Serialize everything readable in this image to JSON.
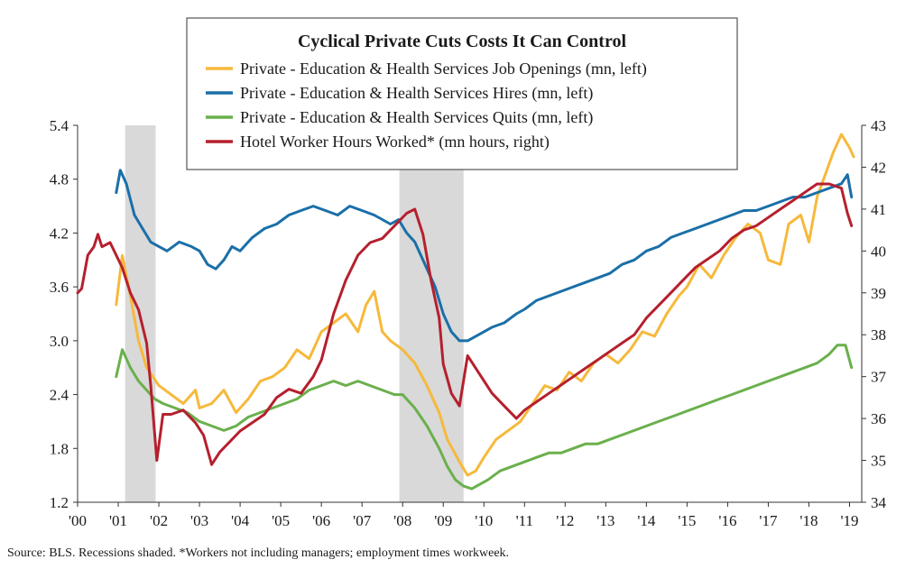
{
  "chart_data": {
    "type": "line",
    "title": "Cyclical Private Cuts Costs It Can Control",
    "source": "Source: BLS. Recessions shaded. *Workers not including managers; employment times workweek.",
    "x_tick_labels": [
      "'00",
      "'01",
      "'02",
      "'03",
      "'04",
      "'05",
      "'06",
      "'07",
      "'08",
      "'09",
      "'10",
      "'11",
      "'12",
      "'13",
      "'14",
      "'15",
      "'16",
      "'17",
      "'18",
      "'19"
    ],
    "x_range": [
      2000.0,
      2019.3
    ],
    "y_left": {
      "range": [
        1.2,
        5.4
      ],
      "ticks": [
        "1.2",
        "1.8",
        "2.4",
        "3.0",
        "3.6",
        "4.2",
        "4.8",
        "5.4"
      ],
      "values": [
        1.2,
        1.8,
        2.4,
        3.0,
        3.6,
        4.2,
        4.8,
        5.4
      ]
    },
    "y_right": {
      "range": [
        34,
        43
      ],
      "ticks": [
        "34",
        "35",
        "36",
        "37",
        "38",
        "39",
        "40",
        "41",
        "42",
        "43"
      ],
      "values": [
        34,
        35,
        36,
        37,
        38,
        39,
        40,
        41,
        42,
        43
      ]
    },
    "recessions": [
      [
        2001.17,
        2001.92
      ],
      [
        2007.92,
        2009.5
      ]
    ],
    "series": [
      {
        "name": "Private - Education & Health Services Job Openings (mn, left)",
        "axis": "left",
        "color": "#f6b93b",
        "points": [
          [
            2000.95,
            3.4
          ],
          [
            2001.1,
            3.95
          ],
          [
            2001.3,
            3.5
          ],
          [
            2001.5,
            3.0
          ],
          [
            2001.7,
            2.7
          ],
          [
            2002.0,
            2.5
          ],
          [
            2002.3,
            2.4
          ],
          [
            2002.6,
            2.3
          ],
          [
            2002.9,
            2.45
          ],
          [
            2003.0,
            2.25
          ],
          [
            2003.3,
            2.3
          ],
          [
            2003.6,
            2.45
          ],
          [
            2003.9,
            2.2
          ],
          [
            2004.2,
            2.35
          ],
          [
            2004.5,
            2.55
          ],
          [
            2004.8,
            2.6
          ],
          [
            2005.1,
            2.7
          ],
          [
            2005.4,
            2.9
          ],
          [
            2005.7,
            2.8
          ],
          [
            2006.0,
            3.1
          ],
          [
            2006.3,
            3.2
          ],
          [
            2006.6,
            3.3
          ],
          [
            2006.9,
            3.1
          ],
          [
            2007.1,
            3.4
          ],
          [
            2007.3,
            3.55
          ],
          [
            2007.5,
            3.1
          ],
          [
            2007.7,
            3.0
          ],
          [
            2008.0,
            2.9
          ],
          [
            2008.3,
            2.75
          ],
          [
            2008.6,
            2.5
          ],
          [
            2008.9,
            2.2
          ],
          [
            2009.1,
            1.9
          ],
          [
            2009.4,
            1.65
          ],
          [
            2009.6,
            1.5
          ],
          [
            2009.8,
            1.55
          ],
          [
            2010.0,
            1.7
          ],
          [
            2010.3,
            1.9
          ],
          [
            2010.6,
            2.0
          ],
          [
            2010.9,
            2.1
          ],
          [
            2011.2,
            2.3
          ],
          [
            2011.5,
            2.5
          ],
          [
            2011.8,
            2.45
          ],
          [
            2012.1,
            2.65
          ],
          [
            2012.4,
            2.55
          ],
          [
            2012.7,
            2.75
          ],
          [
            2013.0,
            2.85
          ],
          [
            2013.3,
            2.75
          ],
          [
            2013.6,
            2.9
          ],
          [
            2013.9,
            3.1
          ],
          [
            2014.2,
            3.05
          ],
          [
            2014.5,
            3.3
          ],
          [
            2014.8,
            3.5
          ],
          [
            2015.0,
            3.6
          ],
          [
            2015.3,
            3.85
          ],
          [
            2015.6,
            3.7
          ],
          [
            2015.9,
            3.95
          ],
          [
            2016.2,
            4.15
          ],
          [
            2016.5,
            4.3
          ],
          [
            2016.8,
            4.2
          ],
          [
            2017.0,
            3.9
          ],
          [
            2017.3,
            3.85
          ],
          [
            2017.5,
            4.3
          ],
          [
            2017.8,
            4.4
          ],
          [
            2018.0,
            4.1
          ],
          [
            2018.2,
            4.6
          ],
          [
            2018.4,
            4.85
          ],
          [
            2018.6,
            5.1
          ],
          [
            2018.8,
            5.3
          ],
          [
            2019.0,
            5.15
          ],
          [
            2019.1,
            5.05
          ]
        ]
      },
      {
        "name": "Private - Education & Health Services Hires (mn, left)",
        "axis": "left",
        "color": "#1a6fa8",
        "points": [
          [
            2000.95,
            4.65
          ],
          [
            2001.05,
            4.9
          ],
          [
            2001.2,
            4.75
          ],
          [
            2001.4,
            4.4
          ],
          [
            2001.6,
            4.25
          ],
          [
            2001.8,
            4.1
          ],
          [
            2002.0,
            4.05
          ],
          [
            2002.2,
            4.0
          ],
          [
            2002.5,
            4.1
          ],
          [
            2002.8,
            4.05
          ],
          [
            2003.0,
            4.0
          ],
          [
            2003.2,
            3.85
          ],
          [
            2003.4,
            3.8
          ],
          [
            2003.6,
            3.9
          ],
          [
            2003.8,
            4.05
          ],
          [
            2004.0,
            4.0
          ],
          [
            2004.3,
            4.15
          ],
          [
            2004.6,
            4.25
          ],
          [
            2004.9,
            4.3
          ],
          [
            2005.2,
            4.4
          ],
          [
            2005.5,
            4.45
          ],
          [
            2005.8,
            4.5
          ],
          [
            2006.1,
            4.45
          ],
          [
            2006.4,
            4.4
          ],
          [
            2006.7,
            4.5
          ],
          [
            2007.0,
            4.45
          ],
          [
            2007.3,
            4.4
          ],
          [
            2007.5,
            4.35
          ],
          [
            2007.7,
            4.3
          ],
          [
            2007.9,
            4.35
          ],
          [
            2008.1,
            4.2
          ],
          [
            2008.3,
            4.1
          ],
          [
            2008.5,
            3.9
          ],
          [
            2008.8,
            3.6
          ],
          [
            2009.0,
            3.3
          ],
          [
            2009.2,
            3.1
          ],
          [
            2009.4,
            3.0
          ],
          [
            2009.6,
            3.0
          ],
          [
            2009.8,
            3.05
          ],
          [
            2010.0,
            3.1
          ],
          [
            2010.2,
            3.15
          ],
          [
            2010.5,
            3.2
          ],
          [
            2010.8,
            3.3
          ],
          [
            2011.0,
            3.35
          ],
          [
            2011.3,
            3.45
          ],
          [
            2011.6,
            3.5
          ],
          [
            2011.9,
            3.55
          ],
          [
            2012.2,
            3.6
          ],
          [
            2012.5,
            3.65
          ],
          [
            2012.8,
            3.7
          ],
          [
            2013.1,
            3.75
          ],
          [
            2013.4,
            3.85
          ],
          [
            2013.7,
            3.9
          ],
          [
            2014.0,
            4.0
          ],
          [
            2014.3,
            4.05
          ],
          [
            2014.6,
            4.15
          ],
          [
            2014.9,
            4.2
          ],
          [
            2015.2,
            4.25
          ],
          [
            2015.5,
            4.3
          ],
          [
            2015.8,
            4.35
          ],
          [
            2016.1,
            4.4
          ],
          [
            2016.4,
            4.45
          ],
          [
            2016.7,
            4.45
          ],
          [
            2017.0,
            4.5
          ],
          [
            2017.3,
            4.55
          ],
          [
            2017.6,
            4.6
          ],
          [
            2017.9,
            4.6
          ],
          [
            2018.2,
            4.65
          ],
          [
            2018.5,
            4.7
          ],
          [
            2018.8,
            4.75
          ],
          [
            2018.95,
            4.85
          ],
          [
            2019.05,
            4.6
          ]
        ]
      },
      {
        "name": "Private - Education & Health Services Quits (mn, left)",
        "axis": "left",
        "color": "#6ab04c",
        "points": [
          [
            2000.95,
            2.6
          ],
          [
            2001.1,
            2.9
          ],
          [
            2001.3,
            2.7
          ],
          [
            2001.5,
            2.55
          ],
          [
            2001.7,
            2.45
          ],
          [
            2001.9,
            2.35
          ],
          [
            2002.1,
            2.3
          ],
          [
            2002.4,
            2.25
          ],
          [
            2002.7,
            2.2
          ],
          [
            2003.0,
            2.1
          ],
          [
            2003.3,
            2.05
          ],
          [
            2003.6,
            2.0
          ],
          [
            2003.9,
            2.05
          ],
          [
            2004.2,
            2.15
          ],
          [
            2004.5,
            2.2
          ],
          [
            2004.8,
            2.25
          ],
          [
            2005.1,
            2.3
          ],
          [
            2005.4,
            2.35
          ],
          [
            2005.7,
            2.45
          ],
          [
            2006.0,
            2.5
          ],
          [
            2006.3,
            2.55
          ],
          [
            2006.6,
            2.5
          ],
          [
            2006.9,
            2.55
          ],
          [
            2007.2,
            2.5
          ],
          [
            2007.5,
            2.45
          ],
          [
            2007.8,
            2.4
          ],
          [
            2008.0,
            2.4
          ],
          [
            2008.3,
            2.25
          ],
          [
            2008.6,
            2.05
          ],
          [
            2008.9,
            1.8
          ],
          [
            2009.1,
            1.6
          ],
          [
            2009.3,
            1.45
          ],
          [
            2009.5,
            1.38
          ],
          [
            2009.7,
            1.35
          ],
          [
            2009.9,
            1.4
          ],
          [
            2010.1,
            1.45
          ],
          [
            2010.4,
            1.55
          ],
          [
            2010.7,
            1.6
          ],
          [
            2011.0,
            1.65
          ],
          [
            2011.3,
            1.7
          ],
          [
            2011.6,
            1.75
          ],
          [
            2011.9,
            1.75
          ],
          [
            2012.2,
            1.8
          ],
          [
            2012.5,
            1.85
          ],
          [
            2012.8,
            1.85
          ],
          [
            2013.1,
            1.9
          ],
          [
            2013.4,
            1.95
          ],
          [
            2013.7,
            2.0
          ],
          [
            2014.0,
            2.05
          ],
          [
            2014.3,
            2.1
          ],
          [
            2014.6,
            2.15
          ],
          [
            2014.9,
            2.2
          ],
          [
            2015.2,
            2.25
          ],
          [
            2015.5,
            2.3
          ],
          [
            2015.8,
            2.35
          ],
          [
            2016.1,
            2.4
          ],
          [
            2016.4,
            2.45
          ],
          [
            2016.7,
            2.5
          ],
          [
            2017.0,
            2.55
          ],
          [
            2017.3,
            2.6
          ],
          [
            2017.6,
            2.65
          ],
          [
            2017.9,
            2.7
          ],
          [
            2018.2,
            2.75
          ],
          [
            2018.5,
            2.85
          ],
          [
            2018.7,
            2.95
          ],
          [
            2018.9,
            2.95
          ],
          [
            2019.05,
            2.7
          ]
        ]
      },
      {
        "name": "Hotel Worker Hours Worked* (mn hours, right)",
        "axis": "right",
        "color": "#b5202e",
        "points": [
          [
            2000.0,
            39.0
          ],
          [
            2000.1,
            39.1
          ],
          [
            2000.25,
            39.9
          ],
          [
            2000.4,
            40.1
          ],
          [
            2000.5,
            40.4
          ],
          [
            2000.6,
            40.1
          ],
          [
            2000.8,
            40.2
          ],
          [
            2000.95,
            39.9
          ],
          [
            2001.1,
            39.6
          ],
          [
            2001.3,
            39.0
          ],
          [
            2001.5,
            38.6
          ],
          [
            2001.7,
            37.8
          ],
          [
            2001.8,
            36.8
          ],
          [
            2001.95,
            35.0
          ],
          [
            2002.1,
            36.1
          ],
          [
            2002.3,
            36.1
          ],
          [
            2002.6,
            36.2
          ],
          [
            2002.9,
            35.9
          ],
          [
            2003.1,
            35.6
          ],
          [
            2003.3,
            34.9
          ],
          [
            2003.5,
            35.2
          ],
          [
            2003.7,
            35.4
          ],
          [
            2004.0,
            35.7
          ],
          [
            2004.3,
            35.9
          ],
          [
            2004.6,
            36.1
          ],
          [
            2004.9,
            36.5
          ],
          [
            2005.2,
            36.7
          ],
          [
            2005.5,
            36.6
          ],
          [
            2005.8,
            37.0
          ],
          [
            2006.0,
            37.4
          ],
          [
            2006.3,
            38.5
          ],
          [
            2006.6,
            39.3
          ],
          [
            2006.9,
            39.9
          ],
          [
            2007.2,
            40.2
          ],
          [
            2007.5,
            40.3
          ],
          [
            2007.7,
            40.5
          ],
          [
            2007.9,
            40.7
          ],
          [
            2008.1,
            40.9
          ],
          [
            2008.3,
            41.0
          ],
          [
            2008.5,
            40.4
          ],
          [
            2008.7,
            39.3
          ],
          [
            2008.9,
            38.4
          ],
          [
            2009.0,
            37.3
          ],
          [
            2009.2,
            36.6
          ],
          [
            2009.4,
            36.3
          ],
          [
            2009.6,
            37.5
          ],
          [
            2009.8,
            37.2
          ],
          [
            2010.0,
            36.9
          ],
          [
            2010.2,
            36.6
          ],
          [
            2010.5,
            36.3
          ],
          [
            2010.8,
            36.0
          ],
          [
            2011.0,
            36.2
          ],
          [
            2011.3,
            36.4
          ],
          [
            2011.6,
            36.6
          ],
          [
            2011.9,
            36.8
          ],
          [
            2012.2,
            37.0
          ],
          [
            2012.5,
            37.2
          ],
          [
            2012.8,
            37.4
          ],
          [
            2013.1,
            37.6
          ],
          [
            2013.4,
            37.8
          ],
          [
            2013.7,
            38.0
          ],
          [
            2014.0,
            38.4
          ],
          [
            2014.3,
            38.7
          ],
          [
            2014.6,
            39.0
          ],
          [
            2014.9,
            39.3
          ],
          [
            2015.2,
            39.6
          ],
          [
            2015.5,
            39.8
          ],
          [
            2015.8,
            40.0
          ],
          [
            2016.1,
            40.3
          ],
          [
            2016.4,
            40.5
          ],
          [
            2016.7,
            40.6
          ],
          [
            2017.0,
            40.8
          ],
          [
            2017.3,
            41.0
          ],
          [
            2017.6,
            41.2
          ],
          [
            2017.9,
            41.4
          ],
          [
            2018.2,
            41.6
          ],
          [
            2018.5,
            41.6
          ],
          [
            2018.8,
            41.5
          ],
          [
            2018.95,
            40.9
          ],
          [
            2019.05,
            40.6
          ]
        ]
      }
    ]
  }
}
